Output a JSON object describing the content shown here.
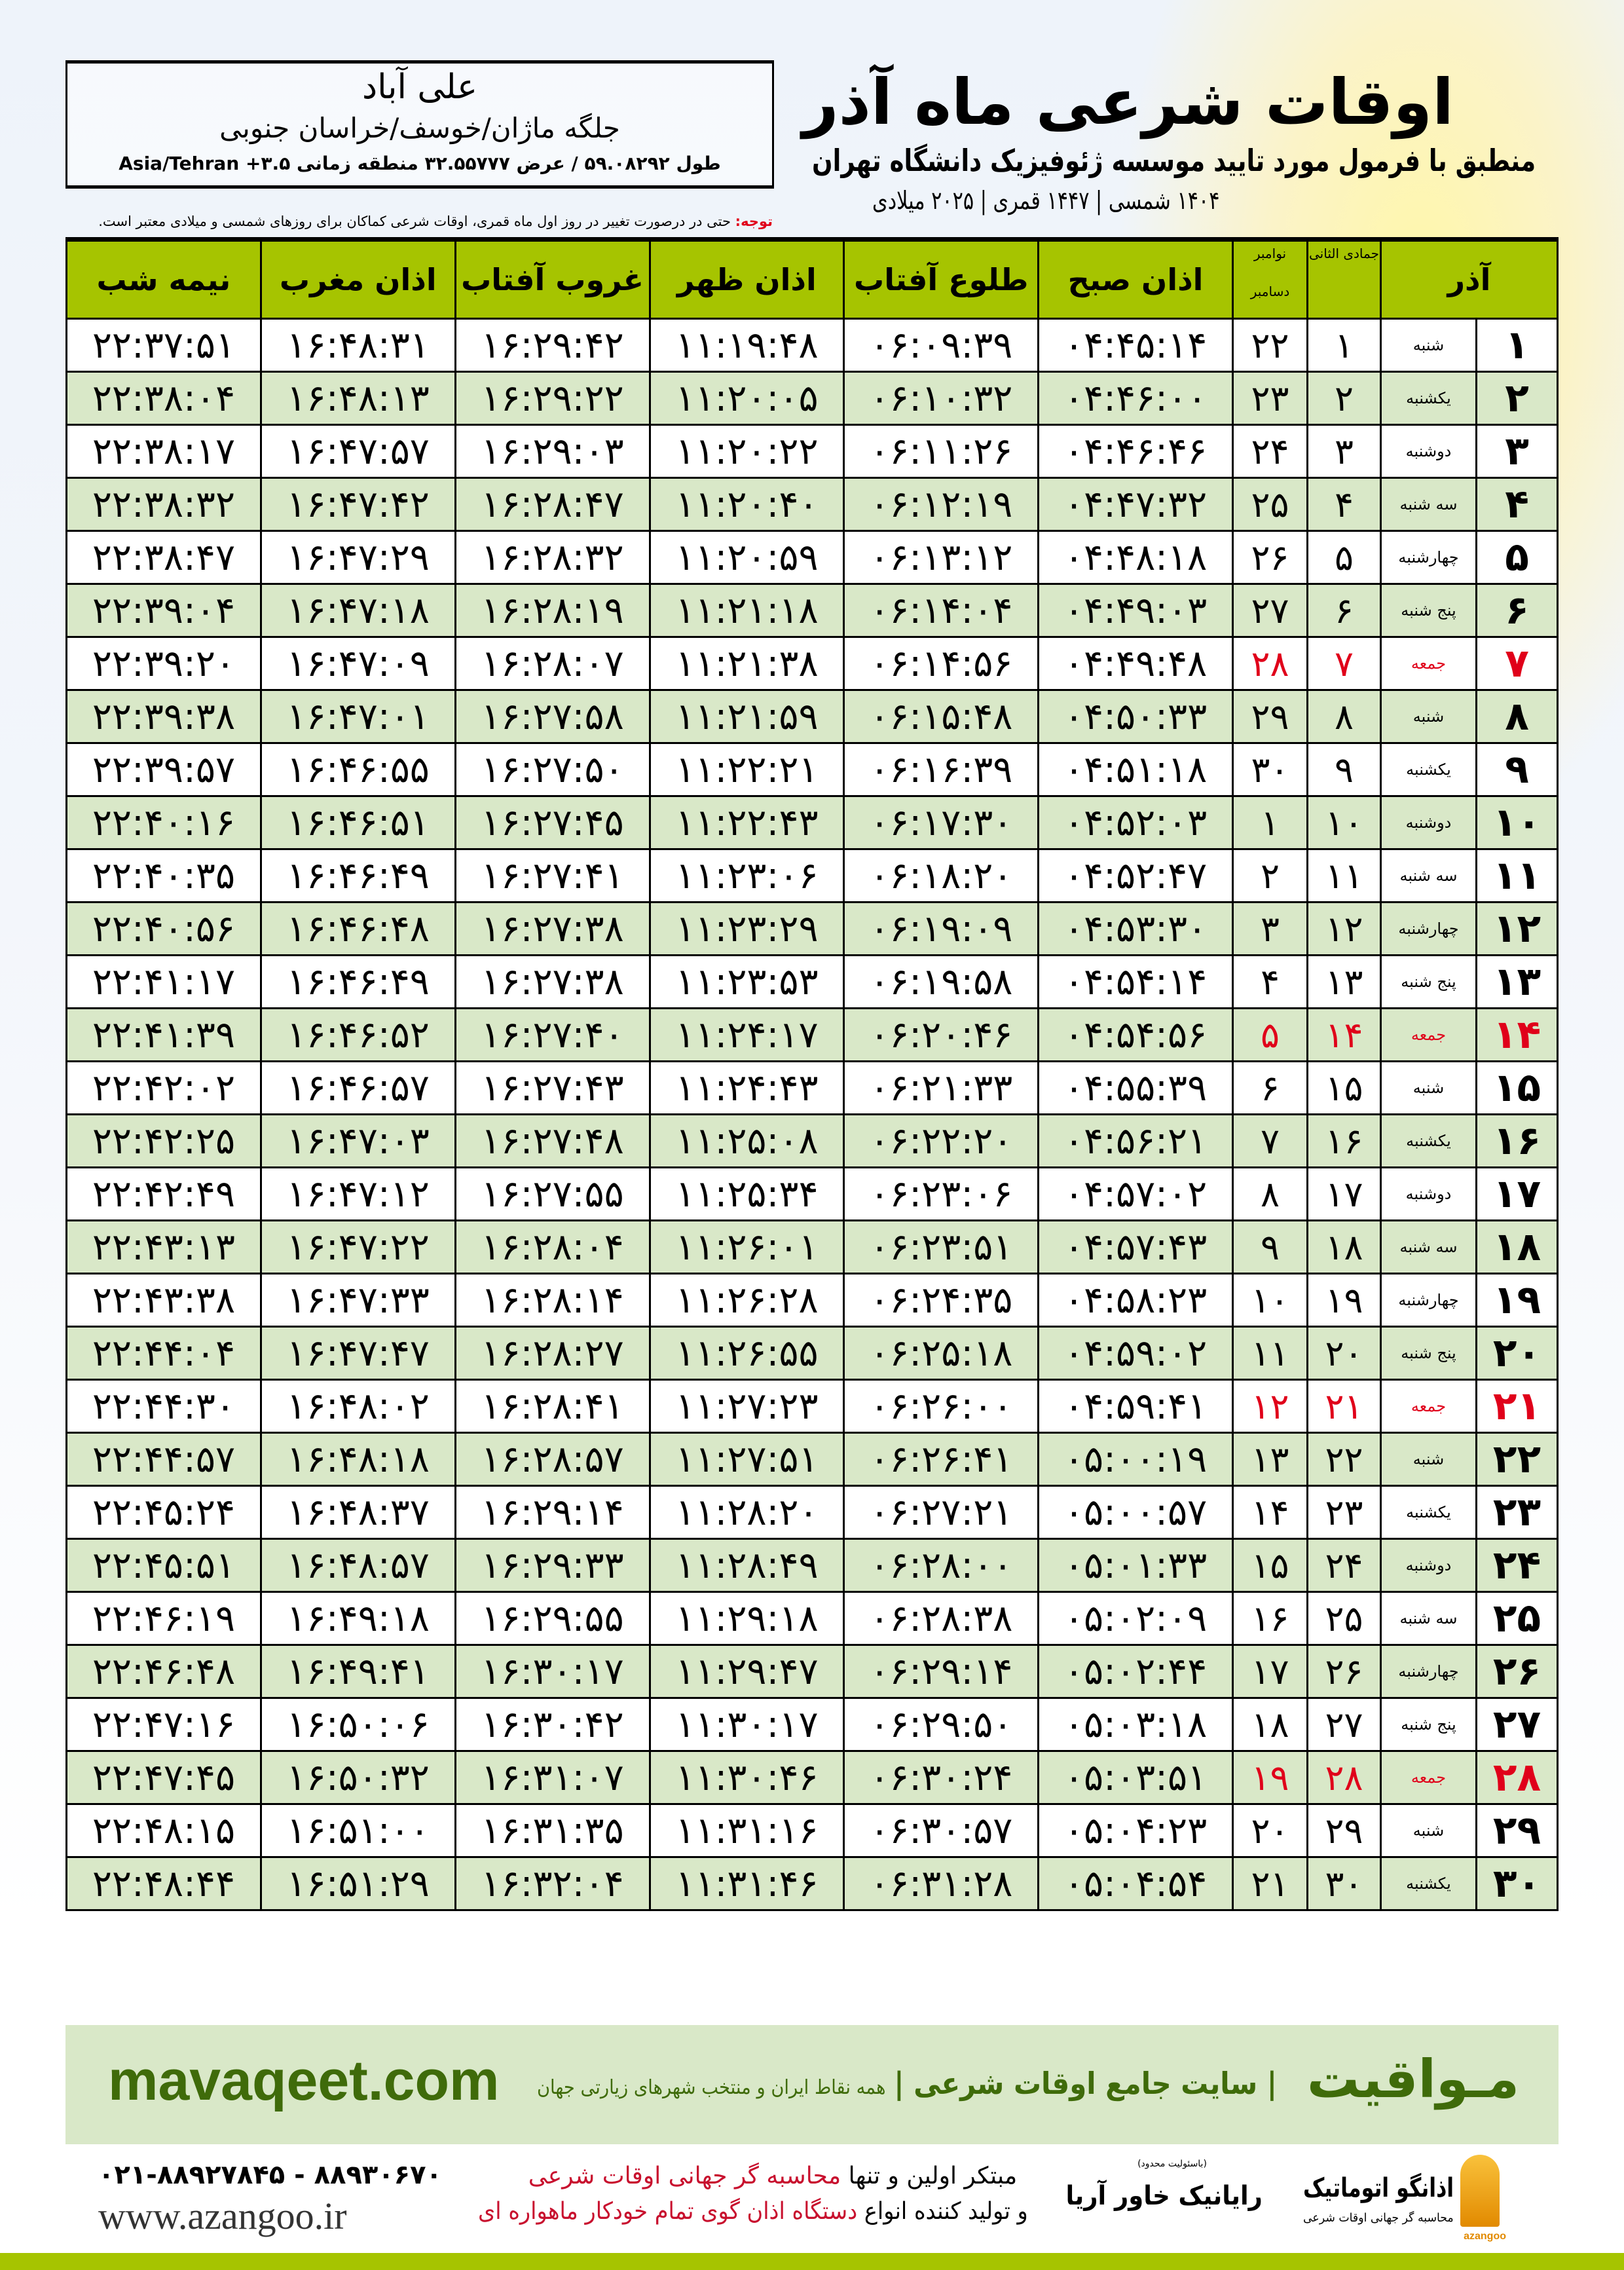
{
  "header": {
    "title": "اوقات شرعی ماه آذر",
    "subtitle": "منطبق با فرمول مورد تایید موسسه ژئوفیزیک دانشگاه تهران",
    "dateline": "۱۴۰۴ شمسی | ۱۴۴۷ قمری | ۲۰۲۵ میلادی"
  },
  "location": {
    "city": "علی آباد",
    "region": "جلگه  ماژان/خوسف/خراسان جنوبی",
    "coords": "طول ۵۹.۰۸۲۹۲ / عرض ۳۲.۵۵۷۷۷ منطقه زمانی ۳.۵+ Asia/Tehran"
  },
  "note": {
    "label": "توجه:",
    "text": " حتی در درصورت تغییر در روز اول ماه قمری، اوقات شرعی کماکان برای روزهای شمسی و میلادی معتبر است."
  },
  "table": {
    "headers": {
      "month": "آذر",
      "hijri": "جمادی الثانی",
      "greg_1": "نوامبر",
      "greg_2": "دسامبر",
      "fajr": "اذان صبح",
      "sunrise": "طلوع آفتاب",
      "dhuhr": "اذان ظهر",
      "sunset": "غروب آفتاب",
      "maghrib": "اذان مغرب",
      "midnight": "نیمه شب"
    },
    "rows": [
      {
        "day": "۱",
        "weekday": "شنبه",
        "hijri": "۱",
        "greg": "۲۲",
        "fajr": "۰۴:۴۵:۱۴",
        "sunrise": "۰۶:۰۹:۳۹",
        "dhuhr": "۱۱:۱۹:۴۸",
        "sunset": "۱۶:۲۹:۴۲",
        "maghrib": "۱۶:۴۸:۳۱",
        "midnight": "۲۲:۳۷:۵۱",
        "holiday": false
      },
      {
        "day": "۲",
        "weekday": "یکشنبه",
        "hijri": "۲",
        "greg": "۲۳",
        "fajr": "۰۴:۴۶:۰۰",
        "sunrise": "۰۶:۱۰:۳۲",
        "dhuhr": "۱۱:۲۰:۰۵",
        "sunset": "۱۶:۲۹:۲۲",
        "maghrib": "۱۶:۴۸:۱۳",
        "midnight": "۲۲:۳۸:۰۴",
        "holiday": false
      },
      {
        "day": "۳",
        "weekday": "دوشنبه",
        "hijri": "۳",
        "greg": "۲۴",
        "fajr": "۰۴:۴۶:۴۶",
        "sunrise": "۰۶:۱۱:۲۶",
        "dhuhr": "۱۱:۲۰:۲۲",
        "sunset": "۱۶:۲۹:۰۳",
        "maghrib": "۱۶:۴۷:۵۷",
        "midnight": "۲۲:۳۸:۱۷",
        "holiday": false
      },
      {
        "day": "۴",
        "weekday": "سه شنبه",
        "hijri": "۴",
        "greg": "۲۵",
        "fajr": "۰۴:۴۷:۳۲",
        "sunrise": "۰۶:۱۲:۱۹",
        "dhuhr": "۱۱:۲۰:۴۰",
        "sunset": "۱۶:۲۸:۴۷",
        "maghrib": "۱۶:۴۷:۴۲",
        "midnight": "۲۲:۳۸:۳۲",
        "holiday": false
      },
      {
        "day": "۵",
        "weekday": "چهارشنبه",
        "hijri": "۵",
        "greg": "۲۶",
        "fajr": "۰۴:۴۸:۱۸",
        "sunrise": "۰۶:۱۳:۱۲",
        "dhuhr": "۱۱:۲۰:۵۹",
        "sunset": "۱۶:۲۸:۳۲",
        "maghrib": "۱۶:۴۷:۲۹",
        "midnight": "۲۲:۳۸:۴۷",
        "holiday": false
      },
      {
        "day": "۶",
        "weekday": "پنج شنبه",
        "hijri": "۶",
        "greg": "۲۷",
        "fajr": "۰۴:۴۹:۰۳",
        "sunrise": "۰۶:۱۴:۰۴",
        "dhuhr": "۱۱:۲۱:۱۸",
        "sunset": "۱۶:۲۸:۱۹",
        "maghrib": "۱۶:۴۷:۱۸",
        "midnight": "۲۲:۳۹:۰۴",
        "holiday": false
      },
      {
        "day": "۷",
        "weekday": "جمعه",
        "hijri": "۷",
        "greg": "۲۸",
        "fajr": "۰۴:۴۹:۴۸",
        "sunrise": "۰۶:۱۴:۵۶",
        "dhuhr": "۱۱:۲۱:۳۸",
        "sunset": "۱۶:۲۸:۰۷",
        "maghrib": "۱۶:۴۷:۰۹",
        "midnight": "۲۲:۳۹:۲۰",
        "holiday": true
      },
      {
        "day": "۸",
        "weekday": "شنبه",
        "hijri": "۸",
        "greg": "۲۹",
        "fajr": "۰۴:۵۰:۳۳",
        "sunrise": "۰۶:۱۵:۴۸",
        "dhuhr": "۱۱:۲۱:۵۹",
        "sunset": "۱۶:۲۷:۵۸",
        "maghrib": "۱۶:۴۷:۰۱",
        "midnight": "۲۲:۳۹:۳۸",
        "holiday": false
      },
      {
        "day": "۹",
        "weekday": "یکشنبه",
        "hijri": "۹",
        "greg": "۳۰",
        "fajr": "۰۴:۵۱:۱۸",
        "sunrise": "۰۶:۱۶:۳۹",
        "dhuhr": "۱۱:۲۲:۲۱",
        "sunset": "۱۶:۲۷:۵۰",
        "maghrib": "۱۶:۴۶:۵۵",
        "midnight": "۲۲:۳۹:۵۷",
        "holiday": false
      },
      {
        "day": "۱۰",
        "weekday": "دوشنبه",
        "hijri": "۱۰",
        "greg": "۱",
        "fajr": "۰۴:۵۲:۰۳",
        "sunrise": "۰۶:۱۷:۳۰",
        "dhuhr": "۱۱:۲۲:۴۳",
        "sunset": "۱۶:۲۷:۴۵",
        "maghrib": "۱۶:۴۶:۵۱",
        "midnight": "۲۲:۴۰:۱۶",
        "holiday": false
      },
      {
        "day": "۱۱",
        "weekday": "سه شنبه",
        "hijri": "۱۱",
        "greg": "۲",
        "fajr": "۰۴:۵۲:۴۷",
        "sunrise": "۰۶:۱۸:۲۰",
        "dhuhr": "۱۱:۲۳:۰۶",
        "sunset": "۱۶:۲۷:۴۱",
        "maghrib": "۱۶:۴۶:۴۹",
        "midnight": "۲۲:۴۰:۳۵",
        "holiday": false
      },
      {
        "day": "۱۲",
        "weekday": "چهارشنبه",
        "hijri": "۱۲",
        "greg": "۳",
        "fajr": "۰۴:۵۳:۳۰",
        "sunrise": "۰۶:۱۹:۰۹",
        "dhuhr": "۱۱:۲۳:۲۹",
        "sunset": "۱۶:۲۷:۳۸",
        "maghrib": "۱۶:۴۶:۴۸",
        "midnight": "۲۲:۴۰:۵۶",
        "holiday": false
      },
      {
        "day": "۱۳",
        "weekday": "پنج شنبه",
        "hijri": "۱۳",
        "greg": "۴",
        "fajr": "۰۴:۵۴:۱۴",
        "sunrise": "۰۶:۱۹:۵۸",
        "dhuhr": "۱۱:۲۳:۵۳",
        "sunset": "۱۶:۲۷:۳۸",
        "maghrib": "۱۶:۴۶:۴۹",
        "midnight": "۲۲:۴۱:۱۷",
        "holiday": false
      },
      {
        "day": "۱۴",
        "weekday": "جمعه",
        "hijri": "۱۴",
        "greg": "۵",
        "fajr": "۰۴:۵۴:۵۶",
        "sunrise": "۰۶:۲۰:۴۶",
        "dhuhr": "۱۱:۲۴:۱۷",
        "sunset": "۱۶:۲۷:۴۰",
        "maghrib": "۱۶:۴۶:۵۲",
        "midnight": "۲۲:۴۱:۳۹",
        "holiday": true
      },
      {
        "day": "۱۵",
        "weekday": "شنبه",
        "hijri": "۱۵",
        "greg": "۶",
        "fajr": "۰۴:۵۵:۳۹",
        "sunrise": "۰۶:۲۱:۳۳",
        "dhuhr": "۱۱:۲۴:۴۳",
        "sunset": "۱۶:۲۷:۴۳",
        "maghrib": "۱۶:۴۶:۵۷",
        "midnight": "۲۲:۴۲:۰۲",
        "holiday": false
      },
      {
        "day": "۱۶",
        "weekday": "یکشنبه",
        "hijri": "۱۶",
        "greg": "۷",
        "fajr": "۰۴:۵۶:۲۱",
        "sunrise": "۰۶:۲۲:۲۰",
        "dhuhr": "۱۱:۲۵:۰۸",
        "sunset": "۱۶:۲۷:۴۸",
        "maghrib": "۱۶:۴۷:۰۳",
        "midnight": "۲۲:۴۲:۲۵",
        "holiday": false
      },
      {
        "day": "۱۷",
        "weekday": "دوشنبه",
        "hijri": "۱۷",
        "greg": "۸",
        "fajr": "۰۴:۵۷:۰۲",
        "sunrise": "۰۶:۲۳:۰۶",
        "dhuhr": "۱۱:۲۵:۳۴",
        "sunset": "۱۶:۲۷:۵۵",
        "maghrib": "۱۶:۴۷:۱۲",
        "midnight": "۲۲:۴۲:۴۹",
        "holiday": false
      },
      {
        "day": "۱۸",
        "weekday": "سه شنبه",
        "hijri": "۱۸",
        "greg": "۹",
        "fajr": "۰۴:۵۷:۴۳",
        "sunrise": "۰۶:۲۳:۵۱",
        "dhuhr": "۱۱:۲۶:۰۱",
        "sunset": "۱۶:۲۸:۰۴",
        "maghrib": "۱۶:۴۷:۲۲",
        "midnight": "۲۲:۴۳:۱۳",
        "holiday": false
      },
      {
        "day": "۱۹",
        "weekday": "چهارشنبه",
        "hijri": "۱۹",
        "greg": "۱۰",
        "fajr": "۰۴:۵۸:۲۳",
        "sunrise": "۰۶:۲۴:۳۵",
        "dhuhr": "۱۱:۲۶:۲۸",
        "sunset": "۱۶:۲۸:۱۴",
        "maghrib": "۱۶:۴۷:۳۳",
        "midnight": "۲۲:۴۳:۳۸",
        "holiday": false
      },
      {
        "day": "۲۰",
        "weekday": "پنج شنبه",
        "hijri": "۲۰",
        "greg": "۱۱",
        "fajr": "۰۴:۵۹:۰۲",
        "sunrise": "۰۶:۲۵:۱۸",
        "dhuhr": "۱۱:۲۶:۵۵",
        "sunset": "۱۶:۲۸:۲۷",
        "maghrib": "۱۶:۴۷:۴۷",
        "midnight": "۲۲:۴۴:۰۴",
        "holiday": false
      },
      {
        "day": "۲۱",
        "weekday": "جمعه",
        "hijri": "۲۱",
        "greg": "۱۲",
        "fajr": "۰۴:۵۹:۴۱",
        "sunrise": "۰۶:۲۶:۰۰",
        "dhuhr": "۱۱:۲۷:۲۳",
        "sunset": "۱۶:۲۸:۴۱",
        "maghrib": "۱۶:۴۸:۰۲",
        "midnight": "۲۲:۴۴:۳۰",
        "holiday": true
      },
      {
        "day": "۲۲",
        "weekday": "شنبه",
        "hijri": "۲۲",
        "greg": "۱۳",
        "fajr": "۰۵:۰۰:۱۹",
        "sunrise": "۰۶:۲۶:۴۱",
        "dhuhr": "۱۱:۲۷:۵۱",
        "sunset": "۱۶:۲۸:۵۷",
        "maghrib": "۱۶:۴۸:۱۸",
        "midnight": "۲۲:۴۴:۵۷",
        "holiday": false
      },
      {
        "day": "۲۳",
        "weekday": "یکشنبه",
        "hijri": "۲۳",
        "greg": "۱۴",
        "fajr": "۰۵:۰۰:۵۷",
        "sunrise": "۰۶:۲۷:۲۱",
        "dhuhr": "۱۱:۲۸:۲۰",
        "sunset": "۱۶:۲۹:۱۴",
        "maghrib": "۱۶:۴۸:۳۷",
        "midnight": "۲۲:۴۵:۲۴",
        "holiday": false
      },
      {
        "day": "۲۴",
        "weekday": "دوشنبه",
        "hijri": "۲۴",
        "greg": "۱۵",
        "fajr": "۰۵:۰۱:۳۳",
        "sunrise": "۰۶:۲۸:۰۰",
        "dhuhr": "۱۱:۲۸:۴۹",
        "sunset": "۱۶:۲۹:۳۳",
        "maghrib": "۱۶:۴۸:۵۷",
        "midnight": "۲۲:۴۵:۵۱",
        "holiday": false
      },
      {
        "day": "۲۵",
        "weekday": "سه شنبه",
        "hijri": "۲۵",
        "greg": "۱۶",
        "fajr": "۰۵:۰۲:۰۹",
        "sunrise": "۰۶:۲۸:۳۸",
        "dhuhr": "۱۱:۲۹:۱۸",
        "sunset": "۱۶:۲۹:۵۵",
        "maghrib": "۱۶:۴۹:۱۸",
        "midnight": "۲۲:۴۶:۱۹",
        "holiday": false
      },
      {
        "day": "۲۶",
        "weekday": "چهارشنبه",
        "hijri": "۲۶",
        "greg": "۱۷",
        "fajr": "۰۵:۰۲:۴۴",
        "sunrise": "۰۶:۲۹:۱۴",
        "dhuhr": "۱۱:۲۹:۴۷",
        "sunset": "۱۶:۳۰:۱۷",
        "maghrib": "۱۶:۴۹:۴۱",
        "midnight": "۲۲:۴۶:۴۸",
        "holiday": false
      },
      {
        "day": "۲۷",
        "weekday": "پنج شنبه",
        "hijri": "۲۷",
        "greg": "۱۸",
        "fajr": "۰۵:۰۳:۱۸",
        "sunrise": "۰۶:۲۹:۵۰",
        "dhuhr": "۱۱:۳۰:۱۷",
        "sunset": "۱۶:۳۰:۴۲",
        "maghrib": "۱۶:۵۰:۰۶",
        "midnight": "۲۲:۴۷:۱۶",
        "holiday": false
      },
      {
        "day": "۲۸",
        "weekday": "جمعه",
        "hijri": "۲۸",
        "greg": "۱۹",
        "fajr": "۰۵:۰۳:۵۱",
        "sunrise": "۰۶:۳۰:۲۴",
        "dhuhr": "۱۱:۳۰:۴۶",
        "sunset": "۱۶:۳۱:۰۷",
        "maghrib": "۱۶:۵۰:۳۲",
        "midnight": "۲۲:۴۷:۴۵",
        "holiday": true
      },
      {
        "day": "۲۹",
        "weekday": "شنبه",
        "hijri": "۲۹",
        "greg": "۲۰",
        "fajr": "۰۵:۰۴:۲۳",
        "sunrise": "۰۶:۳۰:۵۷",
        "dhuhr": "۱۱:۳۱:۱۶",
        "sunset": "۱۶:۳۱:۳۵",
        "maghrib": "۱۶:۵۱:۰۰",
        "midnight": "۲۲:۴۸:۱۵",
        "holiday": false
      },
      {
        "day": "۳۰",
        "weekday": "یکشنبه",
        "hijri": "۳۰",
        "greg": "۲۱",
        "fajr": "۰۵:۰۴:۵۴",
        "sunrise": "۰۶:۳۱:۲۸",
        "dhuhr": "۱۱:۳۱:۴۶",
        "sunset": "۱۶:۳۲:۰۴",
        "maghrib": "۱۶:۵۱:۲۹",
        "midnight": "۲۲:۴۸:۴۴",
        "holiday": false
      }
    ]
  },
  "footer": {
    "brand": "مـواقیت",
    "tagline": "| سایت جامع اوقات شرعی |",
    "tagline2": "همه نقاط ایران و منتخب شهرهای زیارتی جهان",
    "site": "mavaqeet.com",
    "phone": "۰۲۱-۸۸۹۲۷۸۴۵ - ۸۸۹۳۰۶۷۰",
    "web": "www.azangoo.ir",
    "promo_1a": "مبتکر اولین و تنها ",
    "promo_1b": "محاسبه گر جهانی اوقات شرعی",
    "promo_2a": "و تولید کننده انواع ",
    "promo_2b": "دستگاه اذان گوی تمام خودکار ماهواره ای",
    "rayanik_note": "(باسئولیت محدود)",
    "rayanik": "رایانیک خاور آریا",
    "azangoo_name": "اذانگو اتوماتیک",
    "azangoo_sub": "محاسبه گر جهانی اوقات شرعی",
    "azangoo_en": "azangoo"
  },
  "colors": {
    "header_green": "#a6c400",
    "row_green": "#d9e8c8",
    "holiday_red": "#e0001a",
    "brand_green": "#3f6b0a"
  }
}
